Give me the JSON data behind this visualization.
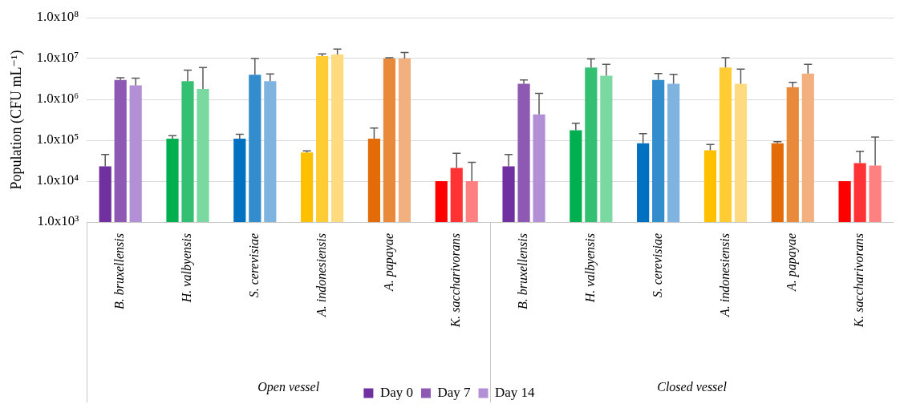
{
  "chart_data": {
    "type": "bar",
    "ylabel": "Population (CFU mL⁻¹)",
    "categories": [
      "B. bruxellensis",
      "H. valbyensis",
      "S. cerevisiae",
      "A. indonesiensis",
      "A. papayae",
      "K. saccharivorans",
      "B. bruxellensis",
      "H. valbyensis",
      "S. cerevisiae",
      "A. indonesiensis",
      "A. papayae",
      "K. saccharivorans"
    ],
    "series": [
      {
        "name": "Day 0",
        "color": "#7030a0",
        "colors": [
          "#7030a0",
          "#00b050",
          "#0070c0",
          "#ffc000",
          "#e36c09",
          "#ff0000",
          "#7030a0",
          "#00b050",
          "#0070c0",
          "#ffc000",
          "#e36c09",
          "#ff0000"
        ],
        "values": [
          23000,
          110000,
          110000,
          50000,
          110000,
          10000,
          23000,
          175000,
          84000,
          57000,
          84000,
          10000
        ],
        "errors": [
          [
            23000,
            45000
          ],
          [
            110000,
            130000
          ],
          [
            110000,
            140000
          ],
          [
            50000,
            55000
          ],
          [
            110000,
            200000
          ],
          null,
          [
            23000,
            45000
          ],
          [
            175000,
            260000
          ],
          [
            84000,
            145000
          ],
          [
            57000,
            79000
          ],
          [
            84000,
            92000
          ],
          null
        ]
      },
      {
        "name": "Day 7",
        "color": "#8d59b3",
        "colors": [
          "#8d59b3",
          "#33c073",
          "#338dcd",
          "#ffcd33",
          "#e9893a",
          "#ff3333",
          "#8d59b3",
          "#33c073",
          "#338dcd",
          "#ffcd33",
          "#e9893a",
          "#ff3333"
        ],
        "values": [
          3000000,
          2800000,
          4000000,
          11500000,
          10000000,
          21000,
          2400000,
          6000000,
          3000000,
          6000000,
          2000000,
          27500
        ],
        "errors": [
          [
            3000000,
            3400000
          ],
          [
            2800000,
            5200000
          ],
          [
            4000000,
            10000000
          ],
          [
            11500000,
            13000000
          ],
          [
            10000000,
            10500000
          ],
          [
            21000,
            48000
          ],
          [
            2400000,
            3000000
          ],
          [
            6000000,
            9800000
          ],
          [
            3000000,
            4300000
          ],
          [
            6000000,
            10500000
          ],
          [
            2000000,
            2600000
          ],
          [
            27500,
            54000
          ]
        ]
      },
      {
        "name": "Day 14",
        "color": "#b38fd6",
        "colors": [
          "#b38fd6",
          "#7ad9a0",
          "#7fb3e0",
          "#ffdb7f",
          "#f2b07f",
          "#ff8080",
          "#b38fd6",
          "#7ad9a0",
          "#7fb3e0",
          "#ffdb7f",
          "#f2b07f",
          "#ff8080"
        ],
        "values": [
          2200000,
          1800000,
          2800000,
          12500000,
          10000000,
          10000,
          430000,
          3800000,
          2400000,
          2400000,
          4300000,
          24000
        ],
        "errors": [
          [
            2200000,
            3300000
          ],
          [
            1800000,
            6000000
          ],
          [
            2800000,
            4200000
          ],
          [
            12500000,
            17000000
          ],
          [
            10000000,
            14000000
          ],
          [
            10000,
            29000
          ],
          [
            430000,
            1400000
          ],
          [
            3800000,
            7200000
          ],
          [
            2400000,
            4100000
          ],
          [
            2400000,
            5500000
          ],
          [
            4300000,
            7200000
          ],
          [
            24000,
            120000
          ]
        ]
      }
    ],
    "log": true,
    "ylim": [
      1000,
      100000000
    ],
    "yticks": [
      {
        "value": 1000,
        "label": "1.0x10³"
      },
      {
        "value": 10000,
        "label": "1.0x10⁴"
      },
      {
        "value": 100000,
        "label": "1.0x10⁵"
      },
      {
        "value": 1000000,
        "label": "1.0x10⁶"
      },
      {
        "value": 10000000,
        "label": "1.0x10⁷"
      },
      {
        "value": 100000000,
        "label": "1.0x10⁸"
      }
    ],
    "grid": "y",
    "legend": "bottom",
    "annotations": [
      "Open vessel",
      "Closed vessel"
    ]
  }
}
